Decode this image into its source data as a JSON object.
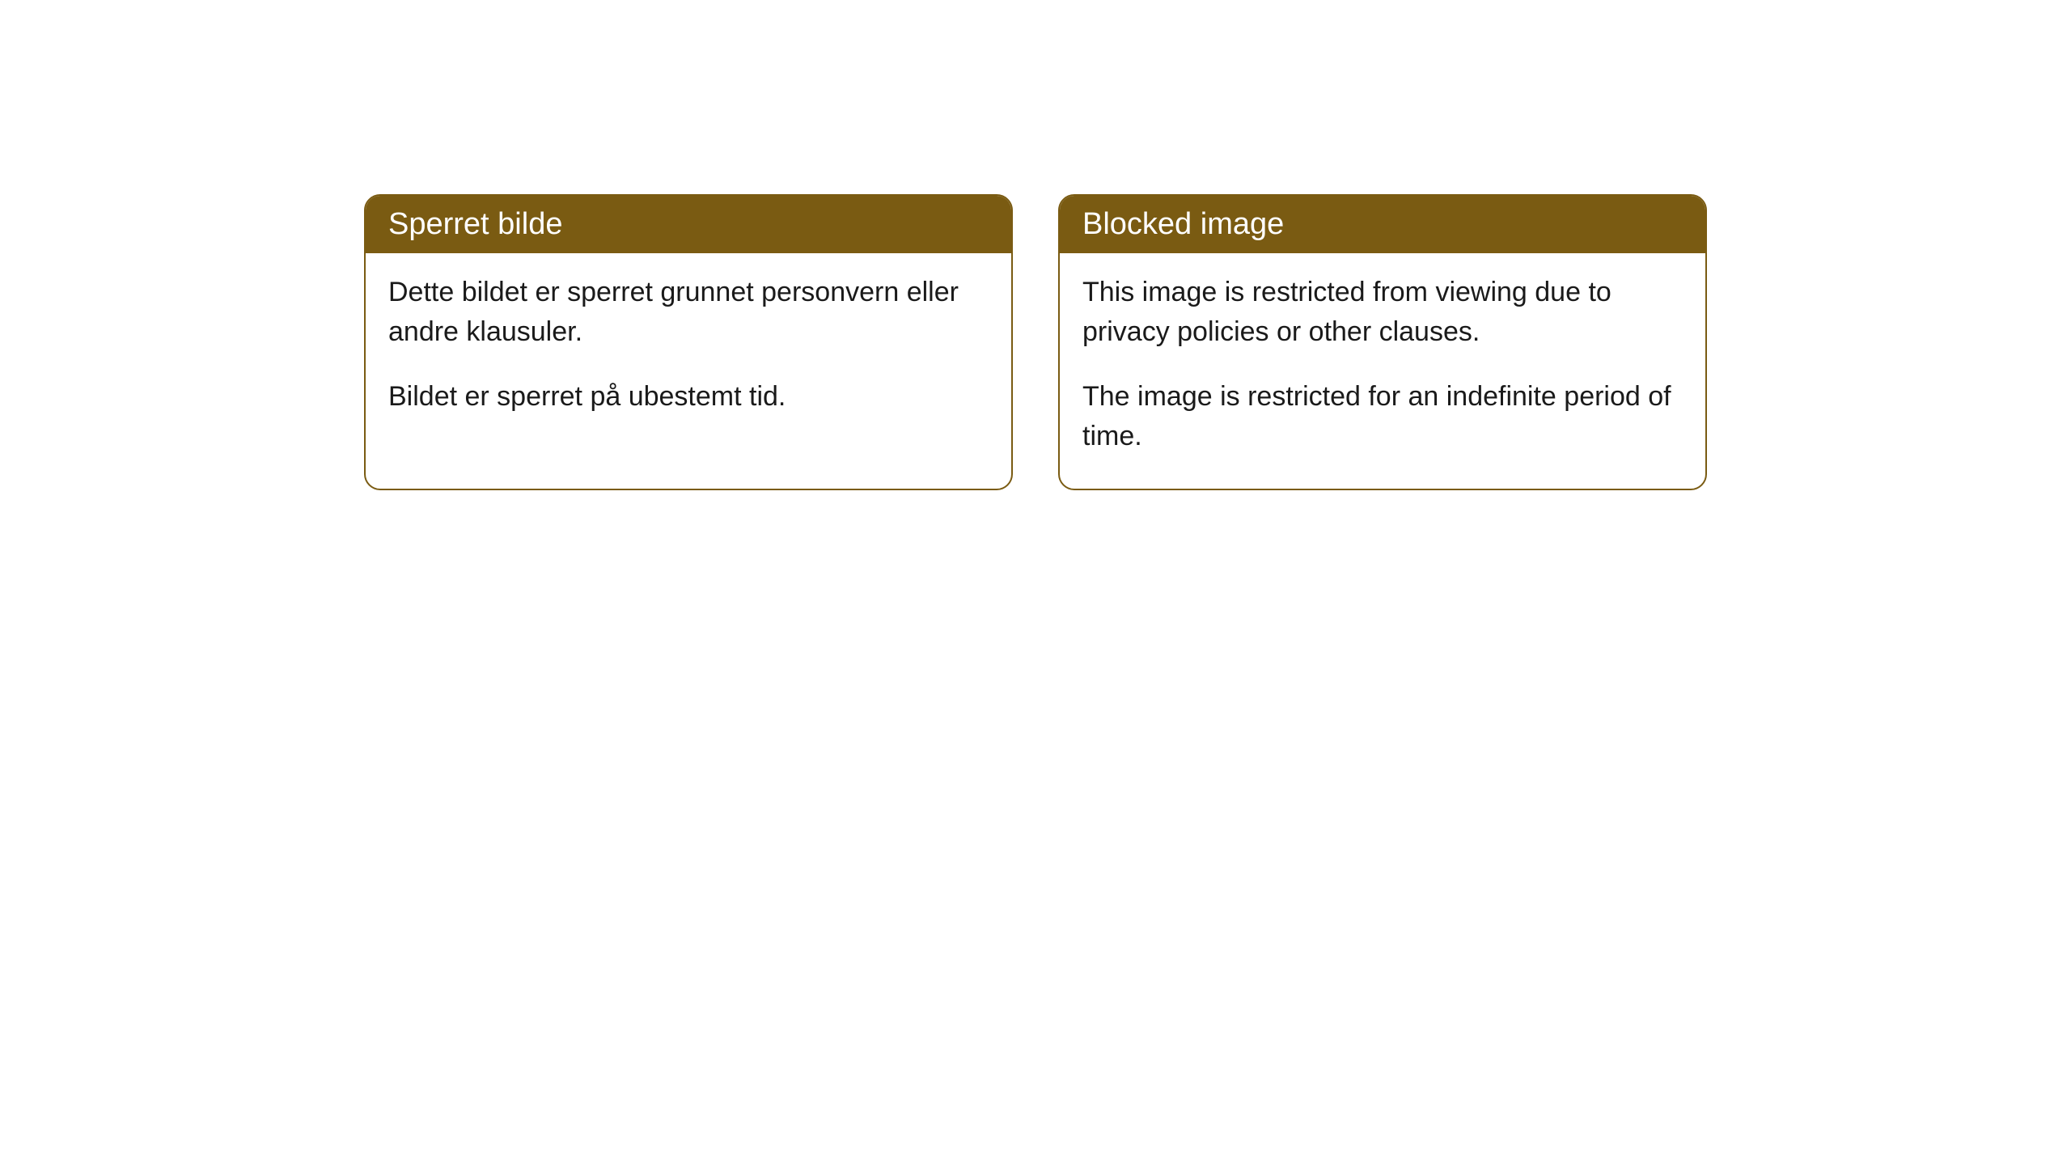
{
  "cards": [
    {
      "title": "Sperret bilde",
      "paragraph1": "Dette bildet er sperret grunnet personvern eller andre klausuler.",
      "paragraph2": "Bildet er sperret på ubestemt tid."
    },
    {
      "title": "Blocked image",
      "paragraph1": "This image is restricted from viewing due to privacy policies or other clauses.",
      "paragraph2": "The image is restricted for an indefinite period of time."
    }
  ],
  "styling": {
    "header_background": "#7a5b12",
    "header_text_color": "#ffffff",
    "card_border_color": "#7a5b12",
    "card_background": "#ffffff",
    "body_text_color": "#1a1a1a",
    "border_radius": 20,
    "title_fontsize": 38,
    "body_fontsize": 34
  }
}
